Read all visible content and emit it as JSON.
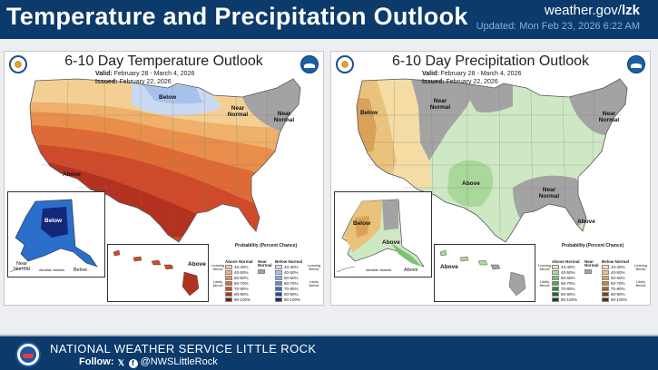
{
  "header": {
    "title": "Temperature and Precipitation Outlook",
    "site_prefix": "weather.gov/",
    "site_suffix": "lzk",
    "updated": "Updated: Mon Feb 23, 2026 6:22 AM"
  },
  "temperature_map": {
    "title": "6-10 Day Temperature Outlook",
    "valid_label": "Valid:",
    "valid": "February 28 - March 4, 2026",
    "issued_label": "Issued:",
    "issued": "February 22, 2026",
    "region_labels": [
      "Below",
      "Near Normal",
      "Near Normal",
      "Above",
      "Below",
      "Near Normal",
      "Below",
      "Above",
      "Aleutian Islands"
    ],
    "legend_title": "Probability (Percent Chance)",
    "legend_left_header": "Above Normal",
    "legend_mid_header": "Near Normal",
    "legend_right_header": "Below Normal",
    "legend_left_side": "Leaning Above",
    "legend_left_side2": "Likely Above",
    "legend_right_side": "Leaning Below",
    "legend_right_side2": "Likely Below",
    "legend_levels": [
      "33-40%",
      "40-50%",
      "50-60%",
      "60-70%",
      "70-80%",
      "80-90%",
      "90-100%"
    ],
    "above_colors": [
      "#f3cf94",
      "#eeb06a",
      "#e98e4b",
      "#de6b36",
      "#cf4a2a",
      "#b3311f",
      "#7a1e12"
    ],
    "below_colors": [
      "#c9d9f1",
      "#a7c2ea",
      "#84a9e0",
      "#5e8ad0",
      "#3c6bbd",
      "#2449a0",
      "#14287a"
    ]
  },
  "precip_map": {
    "title": "6-10 Day Precipitation Outlook",
    "valid_label": "Valid:",
    "valid": "February 28 - March 4, 2026",
    "issued_label": "Issued:",
    "issued": "February 22, 2026",
    "region_labels": [
      "Below",
      "Near Normal",
      "Near Normal",
      "Above",
      "Near Normal",
      "Above",
      "Below",
      "Above",
      "Above",
      "Above",
      "Aleutian Islands"
    ],
    "legend_title": "Probability (Percent Chance)",
    "legend_left_header": "Above Normal",
    "legend_mid_header": "Near Normal",
    "legend_right_header": "Below Normal",
    "legend_left_side": "Leaning Above",
    "legend_left_side2": "Likely Above",
    "legend_right_side": "Leaning Below",
    "legend_right_side2": "Likely Below",
    "legend_levels": [
      "33-40%",
      "40-50%",
      "50-60%",
      "60-70%",
      "70-80%",
      "80-90%",
      "90-100%"
    ],
    "above_colors": [
      "#cfe8c4",
      "#a8d89a",
      "#7cc174",
      "#4fa653",
      "#2f8a3c",
      "#1f6b2b",
      "#114a1b"
    ],
    "below_colors": [
      "#f4dca3",
      "#e9c27b",
      "#d9a25a",
      "#c3813f",
      "#a2622c",
      "#7d461e",
      "#553012"
    ]
  },
  "colors": {
    "header_bg": "#0b3a6b",
    "near_normal": "#a3a3a3"
  },
  "footer": {
    "office": "NATIONAL WEATHER SERVICE LITTLE ROCK",
    "follow": "Follow:",
    "x_icon": "x-icon",
    "facebook_icon": "facebook-icon",
    "handle": "@NWSLittleRock"
  }
}
